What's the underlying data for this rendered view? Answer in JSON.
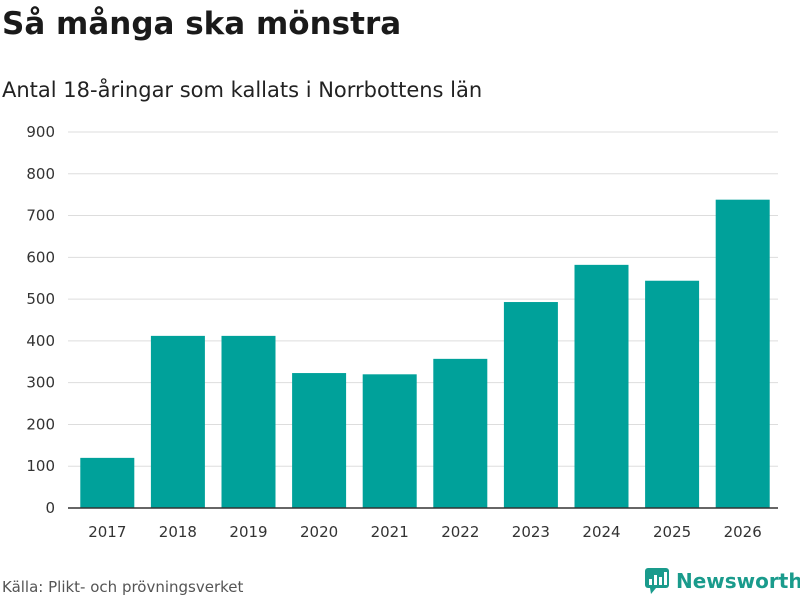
{
  "header": {
    "title": "Så många ska mönstra",
    "subtitle": "Antal 18-åringar som kallats i Norrbottens län"
  },
  "footer": {
    "source": "Källa: Plikt- och prövningsverket",
    "brand": "Newsworthy"
  },
  "colors": {
    "bar": "#00a19a",
    "grid": "#dddddd",
    "axis": "#333333",
    "brand": "#1a9b8c"
  },
  "chart_data": {
    "type": "bar",
    "title": "Så många ska mönstra",
    "subtitle": "Antal 18-åringar som kallats i Norrbottens län",
    "xlabel": "",
    "ylabel": "",
    "categories": [
      "2017",
      "2018",
      "2019",
      "2020",
      "2021",
      "2022",
      "2023",
      "2024",
      "2025",
      "2026"
    ],
    "values": [
      120,
      412,
      412,
      323,
      320,
      357,
      493,
      582,
      544,
      738
    ],
    "ylim": [
      0,
      900
    ],
    "yticks": [
      0,
      100,
      200,
      300,
      400,
      500,
      600,
      700,
      800,
      900
    ],
    "grid": true
  }
}
